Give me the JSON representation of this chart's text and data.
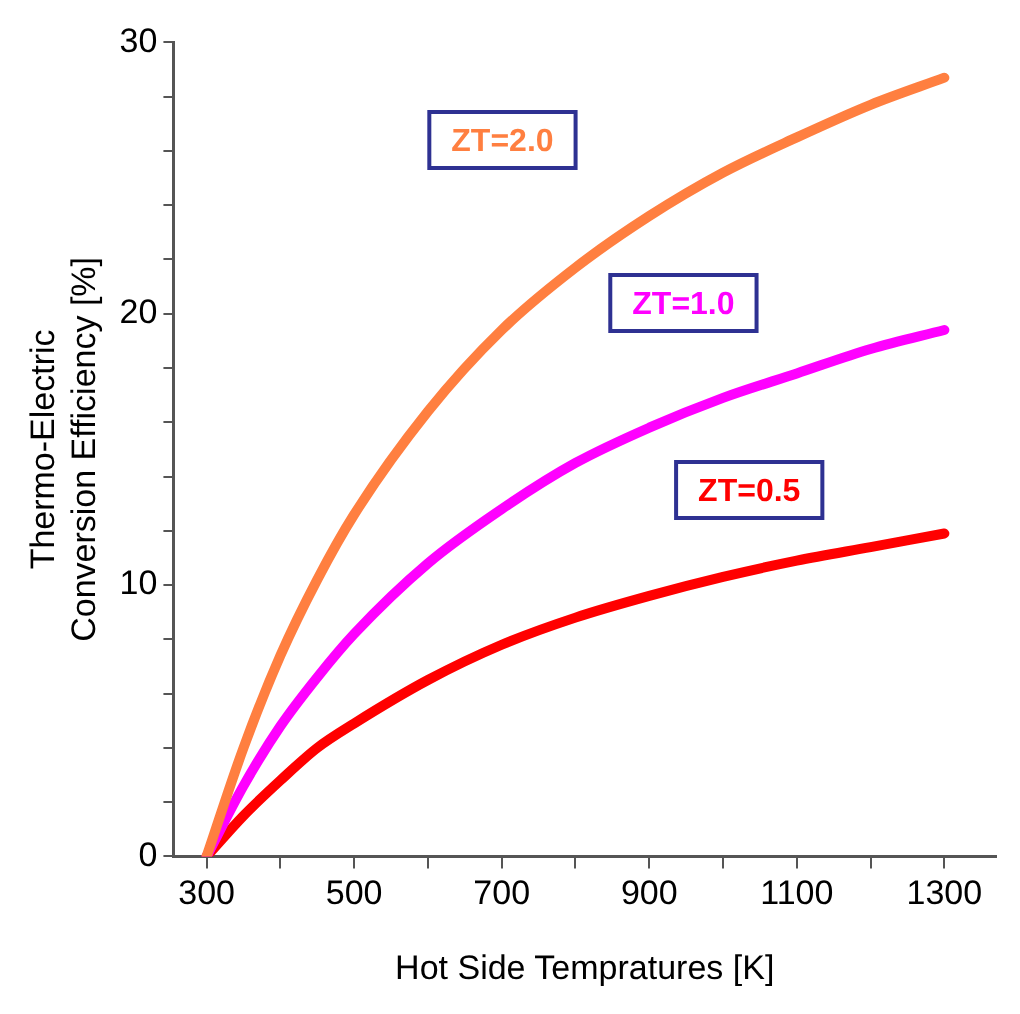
{
  "chart_data": {
    "type": "line",
    "xlabel": "Hot Side Tempratures [K]",
    "ylabel": "Thermo-Electric\nConversion Efficiency [%]",
    "x": [
      300,
      350,
      400,
      450,
      500,
      600,
      700,
      800,
      900,
      1000,
      1100,
      1200,
      1300
    ],
    "series": [
      {
        "name": "ZT=2.0",
        "color": "#ff7f40",
        "values": [
          0,
          4.0,
          7.4,
          10.2,
          12.6,
          16.4,
          19.4,
          21.7,
          23.6,
          25.2,
          26.5,
          27.7,
          28.7
        ]
      },
      {
        "name": "ZT=1.0",
        "color": "#ff00ff",
        "values": [
          0,
          2.6,
          4.8,
          6.6,
          8.2,
          10.8,
          12.8,
          14.5,
          15.8,
          16.9,
          17.8,
          18.7,
          19.4
        ]
      },
      {
        "name": "ZT=0.5",
        "color": "#ff0000",
        "values": [
          0,
          1.5,
          2.8,
          4.0,
          4.9,
          6.5,
          7.8,
          8.8,
          9.6,
          10.3,
          10.9,
          11.4,
          11.9
        ]
      }
    ],
    "xlim": [
      255,
      1370
    ],
    "xticks": [
      300,
      {
        "value": 400,
        "label": null
      },
      500,
      {
        "value": 600,
        "label": null
      },
      700,
      {
        "value": 800,
        "label": null
      },
      900,
      {
        "value": 1000,
        "label": null
      },
      1100,
      {
        "value": 1200,
        "label": null
      },
      1300
    ],
    "ylim": [
      0,
      30
    ],
    "yticks": [
      0,
      {
        "value": 2,
        "label": null
      },
      {
        "value": 4,
        "label": null
      },
      {
        "value": 6,
        "label": null
      },
      {
        "value": 8,
        "label": null
      },
      10,
      {
        "value": 12,
        "label": null
      },
      {
        "value": 14,
        "label": null
      },
      {
        "value": 16,
        "label": null
      },
      {
        "value": 18,
        "label": null
      },
      20,
      {
        "value": 22,
        "label": null
      },
      {
        "value": 24,
        "label": null
      },
      {
        "value": 26,
        "label": null
      },
      {
        "value": 28,
        "label": null
      },
      30
    ],
    "grid": false,
    "legend": false,
    "line_style": "solid",
    "marker": "none"
  }
}
